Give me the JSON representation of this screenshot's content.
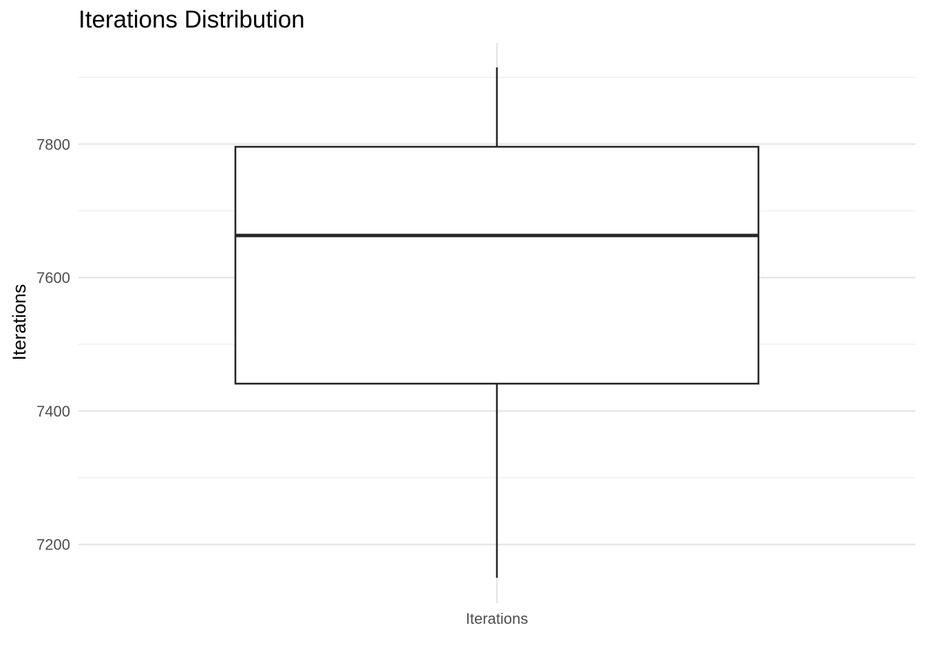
{
  "chart_data": {
    "type": "box",
    "title": "Iterations Distribution",
    "xlabel": "",
    "ylabel": "Iterations",
    "categories": [
      "Iterations"
    ],
    "boxes": [
      {
        "category": "Iterations",
        "whisker_low": 7150,
        "q1": 7441,
        "median": 7663,
        "q3": 7796,
        "whisker_high": 7915
      }
    ],
    "y_ticks": [
      7200,
      7400,
      7600,
      7800
    ],
    "y_tick_labels": [
      "7200",
      "7400",
      "7600",
      "7800"
    ],
    "ylim": [
      7112,
      7952
    ],
    "grid": true,
    "legend": "none",
    "colors": {
      "box_stroke": "#262626",
      "box_fill": "#ffffff",
      "grid_major": "#e5e5e5",
      "grid_minor": "#f0f0f0",
      "tick_text": "#4d4d4d"
    }
  }
}
